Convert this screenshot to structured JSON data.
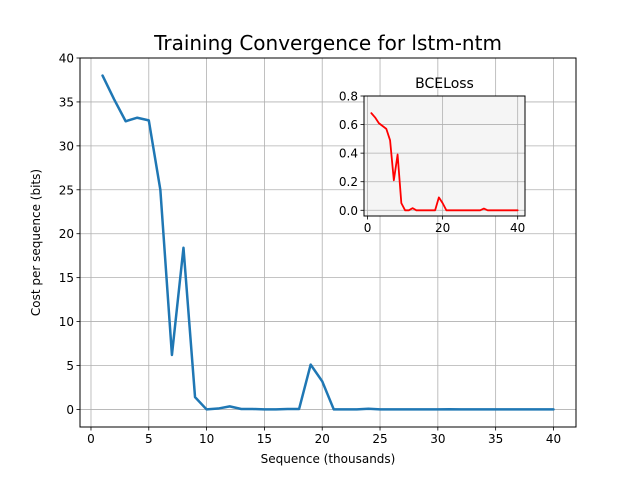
{
  "chart_data": [
    {
      "type": "line",
      "title": "Training Convergence for lstm-ntm",
      "xlabel": "Sequence (thousands)",
      "ylabel": "Cost per sequence (bits)",
      "xlim": [
        -0.95,
        41.95
      ],
      "ylim": [
        -2,
        40
      ],
      "xticks": [
        0,
        5,
        10,
        15,
        20,
        25,
        30,
        35,
        40
      ],
      "yticks": [
        0,
        5,
        10,
        15,
        20,
        25,
        30,
        35,
        40
      ],
      "grid": true,
      "line_color": "#1f77b4",
      "x": [
        1,
        2,
        3,
        4,
        5,
        6,
        7,
        8,
        9,
        10,
        11,
        12,
        13,
        14,
        15,
        16,
        17,
        18,
        19,
        20,
        21,
        22,
        23,
        24,
        25,
        26,
        27,
        28,
        29,
        30,
        31,
        32,
        33,
        34,
        35,
        36,
        37,
        38,
        39,
        40
      ],
      "values": [
        38.0,
        35.3,
        32.8,
        33.2,
        32.9,
        25.0,
        6.2,
        18.4,
        1.4,
        0.0,
        0.1,
        0.35,
        0.05,
        0.05,
        0.0,
        0.0,
        0.05,
        0.05,
        5.1,
        3.2,
        0.0,
        0.0,
        0.0,
        0.08,
        0.0,
        0.0,
        0.0,
        0.0,
        0.0,
        0.0,
        0.02,
        0.0,
        0.0,
        0.0,
        0.0,
        0.0,
        0.0,
        0.0,
        0.0,
        0.0
      ]
    },
    {
      "type": "line",
      "title": "BCELoss",
      "xlim": [
        -0.95,
        41.95
      ],
      "ylim": [
        -0.04,
        0.8
      ],
      "xticks": [
        0,
        20,
        40
      ],
      "yticks": [
        0.0,
        0.2,
        0.4,
        0.6,
        0.8
      ],
      "ytick_labels": [
        "0.0",
        "0.2",
        "0.4",
        "0.6",
        "0.8"
      ],
      "grid": true,
      "line_color": "#ff0000",
      "background": "#f5f5f5",
      "x": [
        1,
        2,
        3,
        4,
        5,
        6,
        7,
        8,
        9,
        10,
        11,
        12,
        13,
        14,
        15,
        16,
        17,
        18,
        19,
        20,
        21,
        22,
        23,
        24,
        25,
        26,
        27,
        28,
        29,
        30,
        31,
        32,
        33,
        34,
        35,
        36,
        37,
        38,
        39,
        40
      ],
      "values": [
        0.68,
        0.65,
        0.61,
        0.59,
        0.57,
        0.49,
        0.21,
        0.39,
        0.05,
        0.0,
        0.0,
        0.015,
        0.0,
        0.0,
        0.0,
        0.0,
        0.0,
        0.0,
        0.09,
        0.05,
        0.0,
        0.0,
        0.0,
        0.0,
        0.0,
        0.0,
        0.0,
        0.0,
        0.0,
        0.0,
        0.012,
        0.0,
        0.0,
        0.0,
        0.0,
        0.0,
        0.0,
        0.0,
        0.0,
        0.0
      ]
    }
  ]
}
